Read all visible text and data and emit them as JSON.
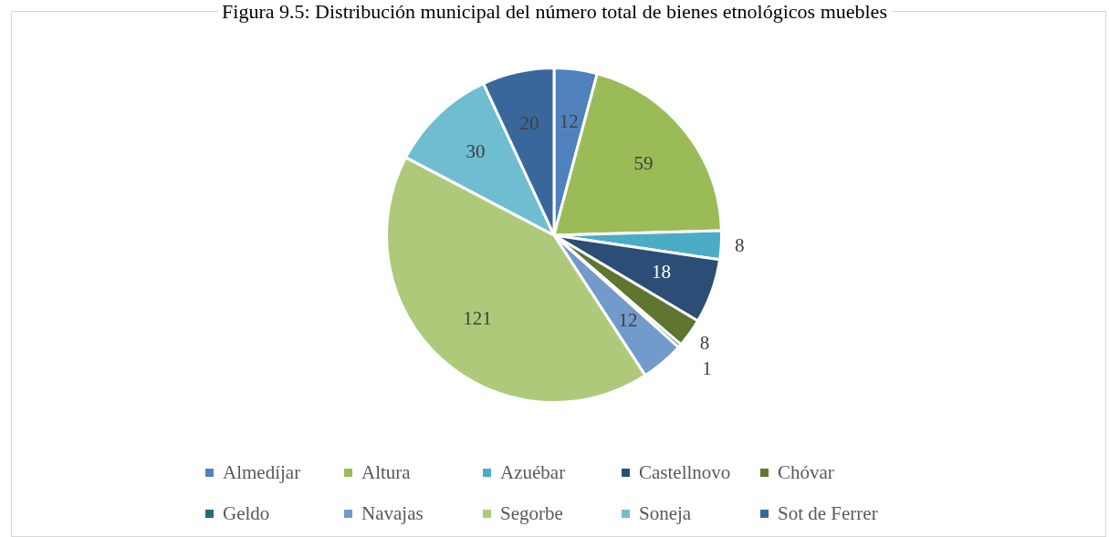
{
  "chart_data": {
    "type": "pie",
    "title": "Figura 9.5: Distribución municipal del número total de bienes etnológicos muebles",
    "categories": [
      "Almedíjar",
      "Altura",
      "Azuébar",
      "Castellnovo",
      "Chóvar",
      "Geldo",
      "Navajas",
      "Segorbe",
      "Soneja",
      "Sot de Ferrer"
    ],
    "values": [
      12,
      59,
      8,
      18,
      8,
      1,
      12,
      121,
      30,
      20
    ],
    "colors": [
      "#4f81bd",
      "#9bbb59",
      "#4bacc6",
      "#2c4d75",
      "#5f7530",
      "#276a7c",
      "#729aca",
      "#afc97a",
      "#6fbdd1",
      "#3a679b"
    ],
    "data_labels": true,
    "legend": "bottom"
  }
}
